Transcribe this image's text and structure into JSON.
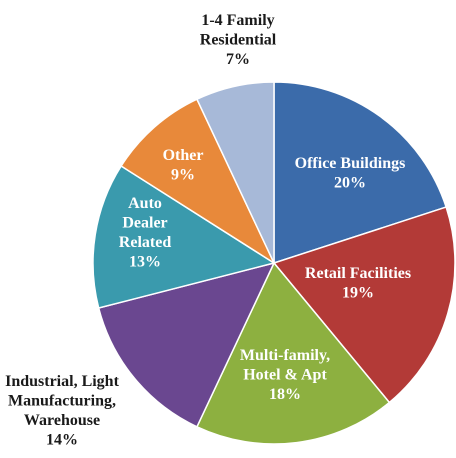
{
  "chart_data": {
    "type": "pie",
    "title": "",
    "slices": [
      {
        "label": [
          "Office Buildings",
          "20%"
        ],
        "value": 20,
        "color": "#3B6BAA",
        "label_pos": "inside"
      },
      {
        "label": [
          "Retail Facilities",
          "19%"
        ],
        "value": 19,
        "color": "#B33A37",
        "label_pos": "inside"
      },
      {
        "label": [
          "Multi-family,",
          "Hotel & Apt",
          "18%"
        ],
        "value": 18,
        "color": "#8DB040",
        "label_pos": "inside"
      },
      {
        "label": [
          "Industrial, Light",
          "Manufacturing,",
          "Warehouse",
          "14%"
        ],
        "value": 14,
        "color": "#6A4790",
        "label_pos": "outside"
      },
      {
        "label": [
          "Auto",
          "Dealer",
          "Related",
          "13%"
        ],
        "value": 13,
        "color": "#3A9AAD",
        "label_pos": "inside"
      },
      {
        "label": [
          "Other",
          "9%"
        ],
        "value": 9,
        "color": "#E8893A",
        "label_pos": "inside"
      },
      {
        "label": [
          "1-4 Family",
          "Residential",
          "7%"
        ],
        "value": 7,
        "color": "#A7B9D8",
        "label_pos": "outside"
      }
    ]
  }
}
